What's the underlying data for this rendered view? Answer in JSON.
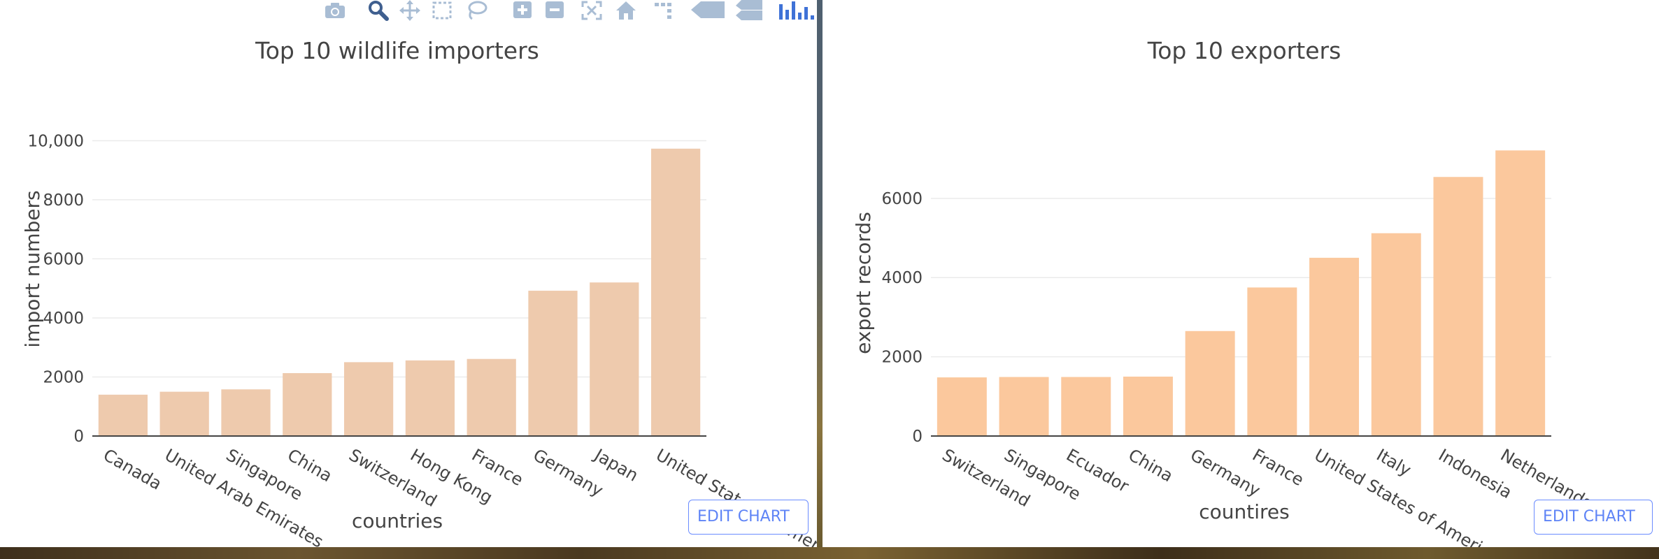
{
  "chart_data": [
    {
      "type": "bar",
      "title": "Top 10 wildlife importers",
      "xlabel": "countries",
      "ylabel": "import numbers",
      "categories": [
        "Canada",
        "United Arab Emirates",
        "Singapore",
        "China",
        "Switzerland",
        "Hong Kong",
        "France",
        "Germany",
        "Japan",
        "United States of America"
      ],
      "values": [
        1400,
        1500,
        1580,
        2130,
        2500,
        2560,
        2610,
        4920,
        5200,
        9730
      ],
      "ylim": [
        0,
        10600
      ],
      "yticks": [
        0,
        2000,
        4000,
        6000,
        8000,
        10000
      ],
      "ytick_labels": [
        "0",
        "2000",
        "4000",
        "6000",
        "8000",
        "10,000"
      ],
      "grid": true,
      "bar_color": "#eecaad"
    },
    {
      "type": "bar",
      "title": "Top 10 exporters",
      "xlabel": "countires",
      "ylabel": "export records",
      "categories": [
        "Switzerland",
        "Singapore",
        "Ecuador",
        "China",
        "Germany",
        "France",
        "United States of America",
        "Italy",
        "Indonesia",
        "Netherlands"
      ],
      "values": [
        1480,
        1490,
        1490,
        1500,
        2650,
        3750,
        4500,
        5120,
        6540,
        7210
      ],
      "ylim": [
        0,
        7550
      ],
      "yticks": [
        0,
        2000,
        4000,
        6000
      ],
      "ytick_labels": [
        "0",
        "2000",
        "4000",
        "6000"
      ],
      "grid": true,
      "bar_color": "#fbc89d"
    }
  ],
  "buttons": {
    "edit_chart": "EDIT CHART"
  },
  "modebar": {
    "icons": [
      "camera-icon",
      "zoom-icon",
      "pan-icon",
      "box-select-icon",
      "lasso-select-icon",
      "zoom-in-icon",
      "zoom-out-icon",
      "autoscale-icon",
      "reset-axes-icon",
      "spike-lines-icon",
      "hover-closest-icon",
      "hover-compare-icon",
      "plotly-logo-icon"
    ],
    "icon_color": "#a9bdd4",
    "logo_color": "#3f72d7"
  }
}
